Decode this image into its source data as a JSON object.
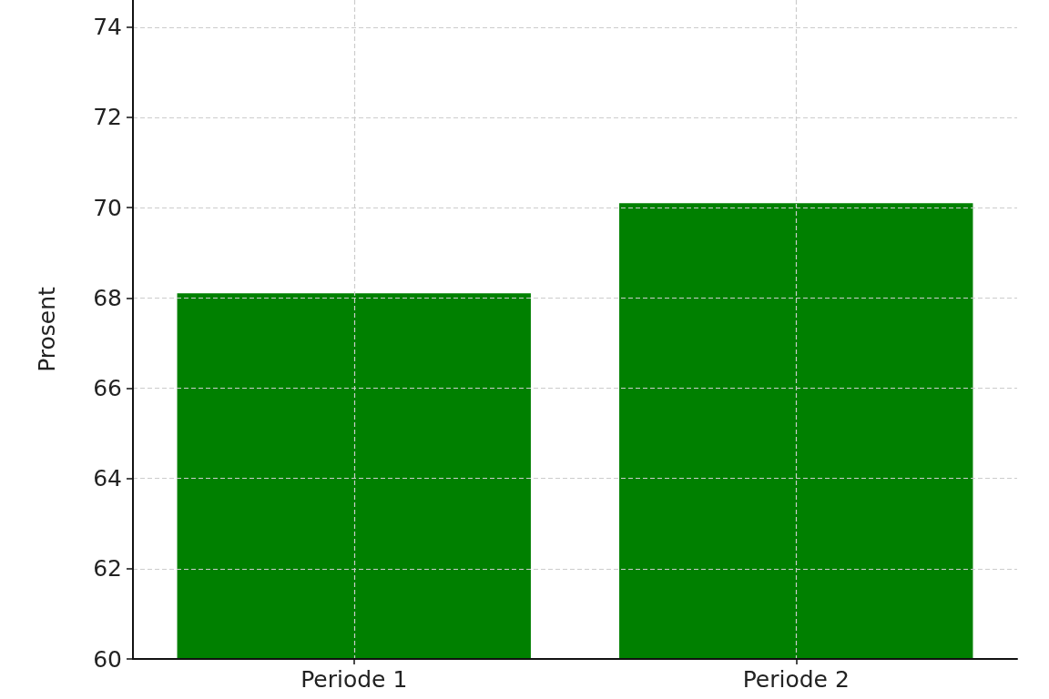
{
  "chart_data": {
    "type": "bar",
    "ylabel": "Prosent",
    "categories": [
      "Periode 1",
      "Periode 2"
    ],
    "values": [
      68.1,
      70.1
    ],
    "color": "#008000",
    "ylim": [
      60,
      74.6
    ],
    "yticks": [
      60,
      62,
      64,
      66,
      68,
      70,
      72,
      74
    ],
    "grid": true
  }
}
